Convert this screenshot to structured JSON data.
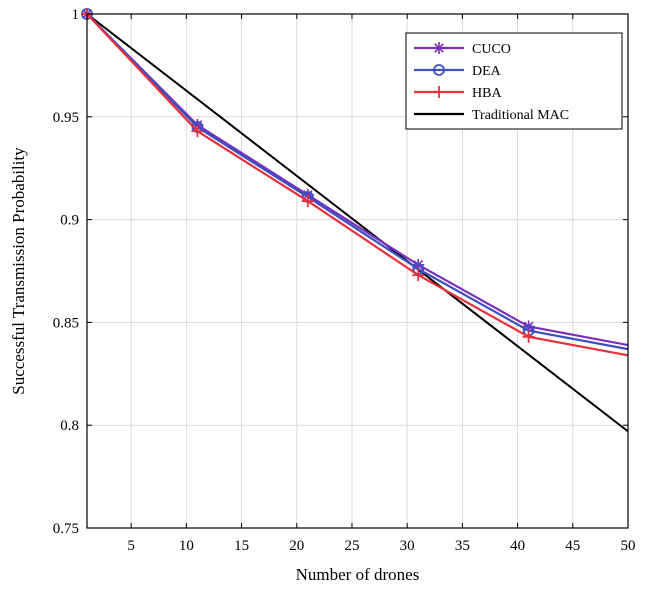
{
  "chart_data": {
    "type": "line",
    "title": "",
    "xlabel": "Number of drones",
    "ylabel": "Successful Transmission Probability",
    "xlim": [
      1,
      50
    ],
    "ylim": [
      0.75,
      1
    ],
    "xticks": [
      5,
      10,
      15,
      20,
      25,
      30,
      35,
      40,
      45,
      50
    ],
    "yticks": [
      0.75,
      0.8,
      0.85,
      0.9,
      0.95,
      1
    ],
    "ytick_labels": [
      "0.75",
      "0.8",
      "0.85",
      "0.9",
      "0.95",
      "1"
    ],
    "grid": true,
    "legend_position": "top-right",
    "series": [
      {
        "name": "CUCO",
        "color": "#7b2fbe",
        "marker": "star",
        "x": [
          1,
          11,
          21,
          31,
          41,
          50
        ],
        "y": [
          1.0,
          0.946,
          0.912,
          0.878,
          0.848,
          0.839
        ]
      },
      {
        "name": "DEA",
        "color": "#3a4fc0",
        "marker": "circle",
        "x": [
          1,
          11,
          21,
          31,
          41,
          50
        ],
        "y": [
          1.0,
          0.945,
          0.911,
          0.876,
          0.846,
          0.837
        ]
      },
      {
        "name": "HBA",
        "color": "#e8303a",
        "marker": "plus",
        "x": [
          1,
          11,
          21,
          31,
          41,
          50
        ],
        "y": [
          1.0,
          0.943,
          0.909,
          0.873,
          0.843,
          0.834
        ]
      },
      {
        "name": "Traditional MAC",
        "color": "#000000",
        "marker": "none",
        "x": [
          1,
          50
        ],
        "y": [
          1.0,
          0.797
        ]
      }
    ]
  }
}
